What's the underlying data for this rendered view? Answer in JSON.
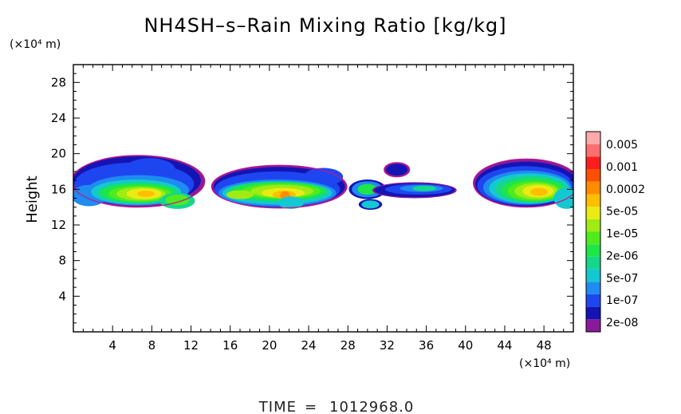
{
  "chart_data": {
    "type": "heatmap",
    "title": "NH4SH–s–Rain Mixing Ratio [kg/kg]",
    "xlabel": "",
    "ylabel": "Height",
    "x_unit": "(×10⁴ m)",
    "y_unit": "(×10⁴ m)",
    "xlim": [
      0,
      51
    ],
    "ylim": [
      0,
      30
    ],
    "x_ticks": [
      4,
      8,
      12,
      16,
      20,
      24,
      28,
      32,
      36,
      40,
      44,
      48
    ],
    "y_ticks": [
      4,
      8,
      12,
      16,
      20,
      24,
      28
    ],
    "colorbar": {
      "labels": [
        "0.005",
        "0.001",
        "0.0002",
        "5e-05",
        "1e-05",
        "2e-06",
        "5e-07",
        "1e-07",
        "2e-08"
      ],
      "colors": [
        "#8b1a9b",
        "#1414b4",
        "#1e46f0",
        "#1e8cf0",
        "#14c8d2",
        "#14d78c",
        "#1ee646",
        "#50eb1e",
        "#a0eb14",
        "#ebeb14",
        "#ffbe00",
        "#ff8c00",
        "#ff5000",
        "#ff1e1e",
        "#ff6e6e",
        "#ffaaaa"
      ]
    },
    "features": [
      {
        "name": "cloud-band-west",
        "x_range": [
          0,
          13.2
        ],
        "z_range": [
          13.9,
          19.8
        ],
        "peak": "2e-04"
      },
      {
        "name": "cloud-band-center",
        "x_range": [
          14.1,
          27.6
        ],
        "z_range": [
          13.6,
          18.5
        ],
        "peak": "1e-03"
      },
      {
        "name": "cloud-band-east",
        "x_range": [
          28.4,
          39.1
        ],
        "z_range": [
          13.6,
          19.0
        ],
        "peak": "5e-05"
      },
      {
        "name": "cloud-band-far-east",
        "x_range": [
          40.9,
          51
        ],
        "z_range": [
          13.8,
          19.4
        ],
        "peak": "2e-04"
      }
    ],
    "time_label": "TIME",
    "time_value": "1012968.0"
  }
}
